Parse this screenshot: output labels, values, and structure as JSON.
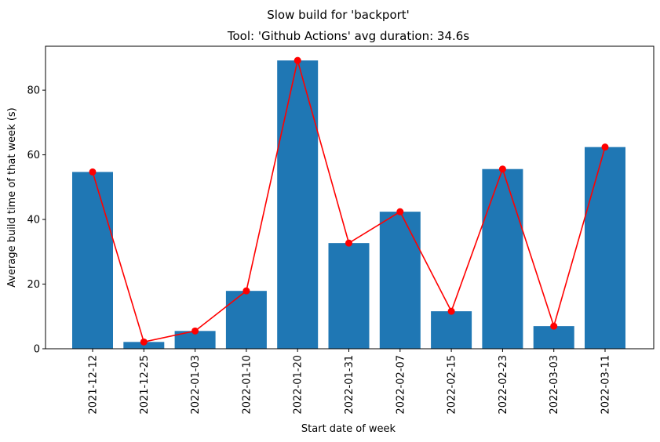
{
  "chart_data": {
    "type": "bar",
    "suptitle": "Slow build for 'backport'",
    "title": "Tool: 'Github Actions' avg duration: 34.6s",
    "xlabel": "Start date of week",
    "ylabel": "Average build time of that week (s)",
    "categories": [
      "2021-12-12",
      "2021-12-25",
      "2022-01-03",
      "2022-01-10",
      "2022-01-20",
      "2022-01-31",
      "2022-02-07",
      "2022-02-15",
      "2022-02-23",
      "2022-03-03",
      "2022-03-11"
    ],
    "values": [
      54.7,
      2.1,
      5.5,
      17.9,
      89.2,
      32.7,
      42.4,
      11.6,
      55.6,
      7.0,
      62.4
    ],
    "line_overlay": {
      "values": [
        54.7,
        2.1,
        5.5,
        17.9,
        89.2,
        32.7,
        42.4,
        11.6,
        55.6,
        7.0,
        62.4
      ]
    },
    "ylim": [
      0,
      93.6
    ],
    "yticks": [
      0,
      20,
      40,
      60,
      80
    ],
    "grid": false,
    "bar_color": "#1f77b4",
    "line_color": "#ff0000"
  }
}
